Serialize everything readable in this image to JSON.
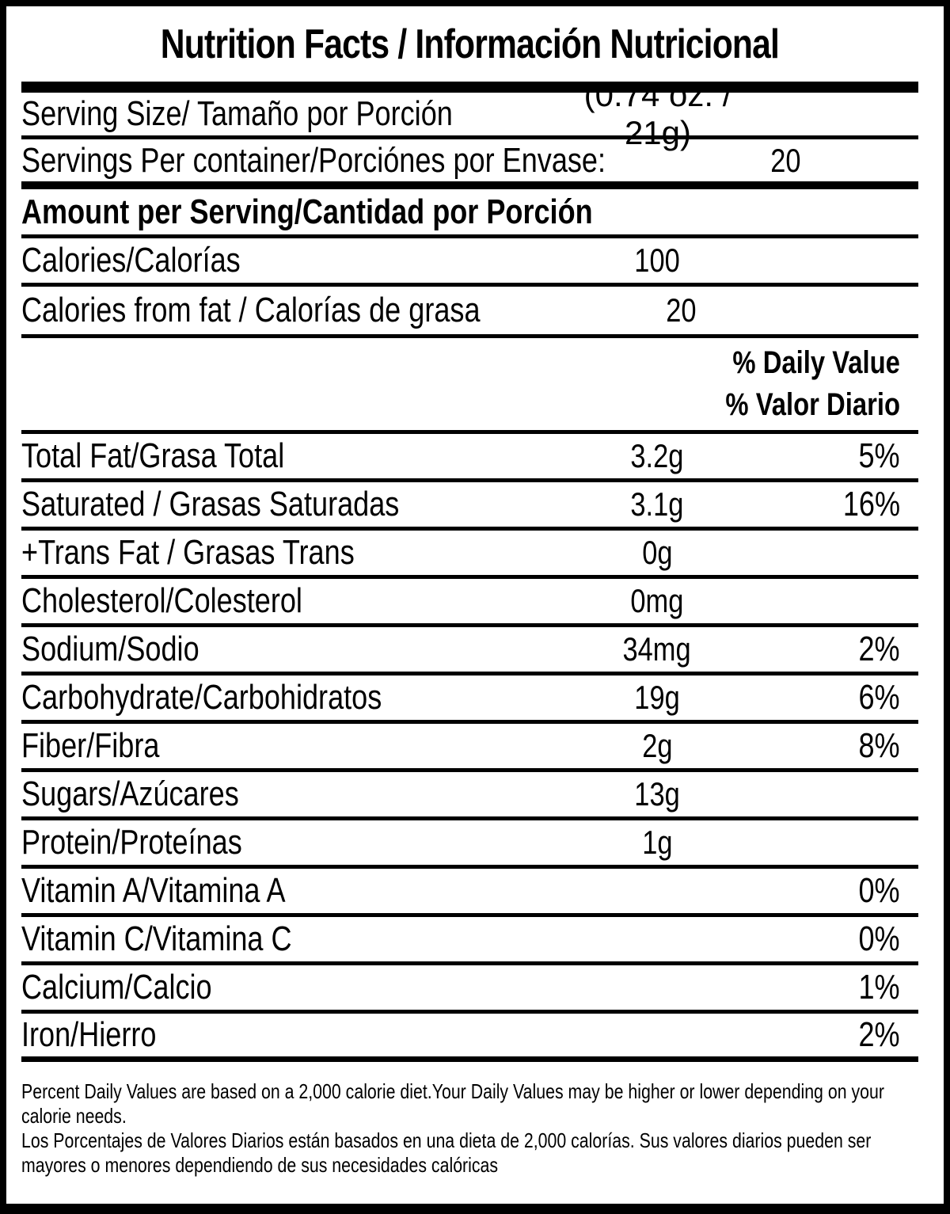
{
  "colors": {
    "text": "#000000",
    "background": "#ffffff",
    "border": "#000000"
  },
  "title": "Nutrition Facts / Información Nutricional",
  "serving_section": {
    "size": {
      "label": "Serving Size/ Tamaño por Porción",
      "value": "(0.74 oz. / 21g)"
    },
    "per_container": {
      "label": "Servings Per container/Porciónes por Envase:",
      "value": "20"
    }
  },
  "amount_per_serving_header": "Amount per Serving/Cantidad por Porción",
  "calories_rows": {
    "calories": {
      "label": "Calories/Calorías",
      "value": "100"
    },
    "calories_from_fat": {
      "label": "Calories from fat / Calorías de grasa",
      "value": "20"
    }
  },
  "daily_value_header": {
    "en": "% Daily Value",
    "es": "% Valor Diario"
  },
  "nutrients": [
    {
      "label": "Total Fat/Grasa Total",
      "amount": "3.2g",
      "dv": "5%"
    },
    {
      "label": "Saturated / Grasas Saturadas",
      "amount": "3.1g",
      "dv": "16%"
    },
    {
      "label": "+Trans Fat / Grasas Trans",
      "amount": "0g",
      "dv": ""
    },
    {
      "label": "Cholesterol/Colesterol",
      "amount": "0mg",
      "dv": ""
    },
    {
      "label": "Sodium/Sodio",
      "amount": "34mg",
      "dv": "2%"
    },
    {
      "label": "Carbohydrate/Carbohidratos",
      "amount": "19g",
      "dv": "6%"
    },
    {
      "label": "Fiber/Fibra",
      "amount": "2g",
      "dv": "8%"
    },
    {
      "label": "Sugars/Azúcares",
      "amount": "13g",
      "dv": ""
    },
    {
      "label": "Protein/Proteínas",
      "amount": "1g",
      "dv": ""
    },
    {
      "label": "Vitamin A/Vitamina A",
      "amount": "",
      "dv": "0%"
    },
    {
      "label": "Vitamin C/Vitamina C",
      "amount": "",
      "dv": "0%"
    },
    {
      "label": "Calcium/Calcio",
      "amount": "",
      "dv": "1%"
    },
    {
      "label": "Iron/Hierro",
      "amount": "",
      "dv": "2%"
    }
  ],
  "footnotes": {
    "en": "Percent Daily Values are based on a 2,000 calorie diet.Your Daily Values may be higher or lower depending on your\ncalorie needs.",
    "es": "Los Porcentajes de Valores Diarios están basados en una dieta de 2,000 calorías. Sus valores diarios pueden ser\nmayores o menores dependiendo de sus necesidades calóricas"
  }
}
